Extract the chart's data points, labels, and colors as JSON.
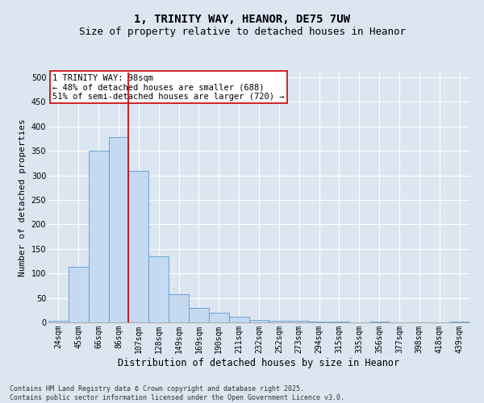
{
  "title": "1, TRINITY WAY, HEANOR, DE75 7UW",
  "subtitle": "Size of property relative to detached houses in Heanor",
  "xlabel": "Distribution of detached houses by size in Heanor",
  "ylabel": "Number of detached properties",
  "categories": [
    "24sqm",
    "45sqm",
    "66sqm",
    "86sqm",
    "107sqm",
    "128sqm",
    "149sqm",
    "169sqm",
    "190sqm",
    "211sqm",
    "232sqm",
    "252sqm",
    "273sqm",
    "294sqm",
    "315sqm",
    "335sqm",
    "356sqm",
    "377sqm",
    "398sqm",
    "418sqm",
    "439sqm"
  ],
  "bar_heights": [
    3,
    113,
    350,
    378,
    310,
    135,
    57,
    30,
    20,
    12,
    5,
    3,
    3,
    2,
    1,
    0,
    1,
    0,
    0,
    0,
    1
  ],
  "bar_color": "#c5d9f1",
  "bar_edge_color": "#5b9bd5",
  "vline_color": "#cc0000",
  "annotation_text": "1 TRINITY WAY: 98sqm\n← 48% of detached houses are smaller (688)\n51% of semi-detached houses are larger (720) →",
  "annotation_box_color": "#ffffff",
  "annotation_box_edge": "#cc0000",
  "ylim": [
    0,
    510
  ],
  "yticks": [
    0,
    50,
    100,
    150,
    200,
    250,
    300,
    350,
    400,
    450,
    500
  ],
  "background_color": "#dce6f1",
  "plot_bg_color": "#dce6f1",
  "grid_color": "#ffffff",
  "footer_text": "Contains HM Land Registry data © Crown copyright and database right 2025.\nContains public sector information licensed under the Open Government Licence v3.0.",
  "title_fontsize": 10,
  "subtitle_fontsize": 9,
  "tick_fontsize": 7,
  "ylabel_fontsize": 8,
  "xlabel_fontsize": 8.5,
  "annotation_fontsize": 7.5,
  "footer_fontsize": 6
}
